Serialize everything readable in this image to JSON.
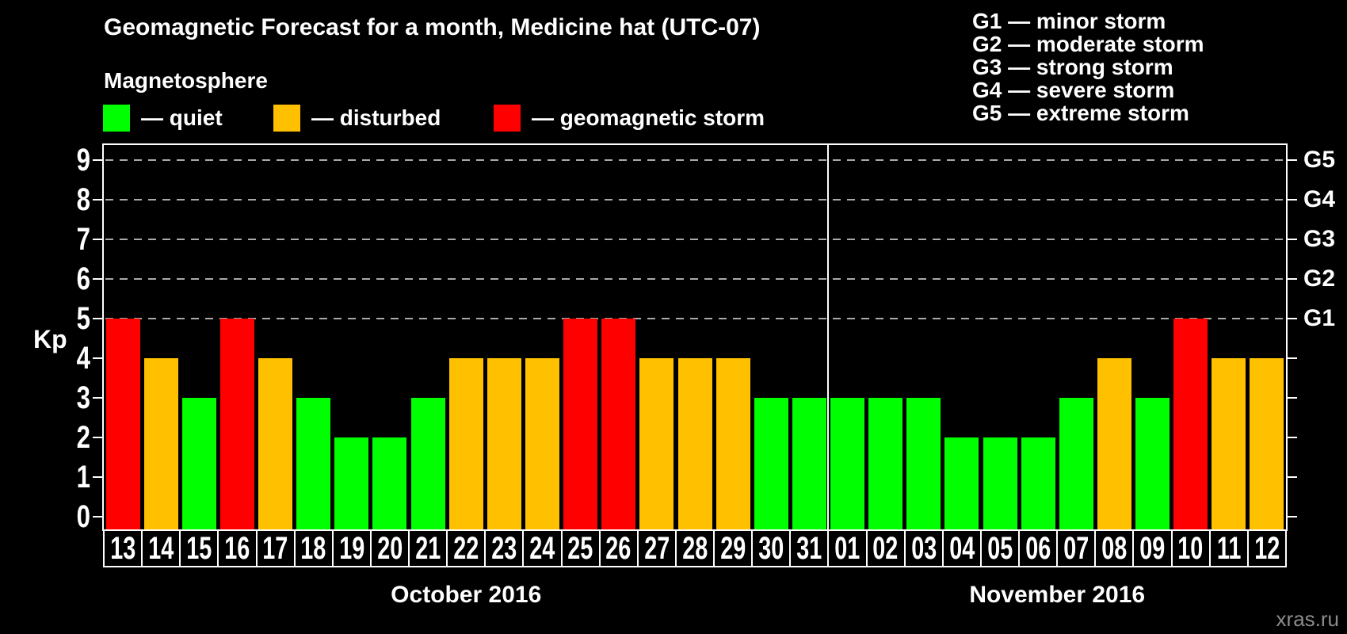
{
  "page": {
    "background": "#000000",
    "watermark": "xras.ru"
  },
  "header": {
    "title": "Geomagnetic Forecast for a month, Medicine hat (UTC-07)",
    "legend_title": "Magnetosphere",
    "legend_items": [
      {
        "label": "— quiet",
        "status": "quiet"
      },
      {
        "label": "— disturbed",
        "status": "disturbed"
      },
      {
        "label": "— geomagnetic storm",
        "status": "storm"
      }
    ],
    "g_scale_legend": [
      "G1 — minor storm",
      "G2 — moderate storm",
      "G3 — strong storm",
      "G4 — severe storm",
      "G5 — extreme storm"
    ]
  },
  "colors": {
    "quiet": "#00FF00",
    "disturbed": "#FFC000",
    "storm": "#FF0000",
    "grid": "#AAAAAA",
    "axis": "#FFFFFF",
    "watermark": "#8C8C8C"
  },
  "chart_data": {
    "type": "bar",
    "title": "Geomagnetic Forecast for a month, Medicine hat (UTC-07)",
    "ylabel": "Kp",
    "xlabel": "",
    "ylim": [
      0,
      9
    ],
    "yticks": [
      0,
      1,
      2,
      3,
      4,
      5,
      6,
      7,
      8,
      9
    ],
    "gridlines_at": [
      5,
      6,
      7,
      8,
      9
    ],
    "grid": "dashed-horizontal-at-storm-levels-only",
    "legend_position": "top-left",
    "right_axis": [
      {
        "value": 5,
        "label": "G1"
      },
      {
        "value": 6,
        "label": "G2"
      },
      {
        "value": 7,
        "label": "G3"
      },
      {
        "value": 8,
        "label": "G4"
      },
      {
        "value": 9,
        "label": "G5"
      }
    ],
    "months": [
      {
        "label": "October 2016",
        "days": 19
      },
      {
        "label": "November 2016",
        "days": 12
      }
    ],
    "bars": [
      {
        "day": "13",
        "kp": 5,
        "status": "storm"
      },
      {
        "day": "14",
        "kp": 4,
        "status": "disturbed"
      },
      {
        "day": "15",
        "kp": 3,
        "status": "quiet"
      },
      {
        "day": "16",
        "kp": 5,
        "status": "storm"
      },
      {
        "day": "17",
        "kp": 4,
        "status": "disturbed"
      },
      {
        "day": "18",
        "kp": 3,
        "status": "quiet"
      },
      {
        "day": "19",
        "kp": 2,
        "status": "quiet"
      },
      {
        "day": "20",
        "kp": 2,
        "status": "quiet"
      },
      {
        "day": "21",
        "kp": 3,
        "status": "quiet"
      },
      {
        "day": "22",
        "kp": 4,
        "status": "disturbed"
      },
      {
        "day": "23",
        "kp": 4,
        "status": "disturbed"
      },
      {
        "day": "24",
        "kp": 4,
        "status": "disturbed"
      },
      {
        "day": "25",
        "kp": 5,
        "status": "storm"
      },
      {
        "day": "26",
        "kp": 5,
        "status": "storm"
      },
      {
        "day": "27",
        "kp": 4,
        "status": "disturbed"
      },
      {
        "day": "28",
        "kp": 4,
        "status": "disturbed"
      },
      {
        "day": "29",
        "kp": 4,
        "status": "disturbed"
      },
      {
        "day": "30",
        "kp": 3,
        "status": "quiet"
      },
      {
        "day": "31",
        "kp": 3,
        "status": "quiet"
      },
      {
        "day": "01",
        "kp": 3,
        "status": "quiet"
      },
      {
        "day": "02",
        "kp": 3,
        "status": "quiet"
      },
      {
        "day": "03",
        "kp": 3,
        "status": "quiet"
      },
      {
        "day": "04",
        "kp": 2,
        "status": "quiet"
      },
      {
        "day": "05",
        "kp": 2,
        "status": "quiet"
      },
      {
        "day": "06",
        "kp": 2,
        "status": "quiet"
      },
      {
        "day": "07",
        "kp": 3,
        "status": "quiet"
      },
      {
        "day": "08",
        "kp": 4,
        "status": "disturbed"
      },
      {
        "day": "09",
        "kp": 3,
        "status": "quiet"
      },
      {
        "day": "10",
        "kp": 5,
        "status": "storm"
      },
      {
        "day": "11",
        "kp": 4,
        "status": "disturbed"
      },
      {
        "day": "12",
        "kp": 4,
        "status": "disturbed"
      }
    ]
  }
}
